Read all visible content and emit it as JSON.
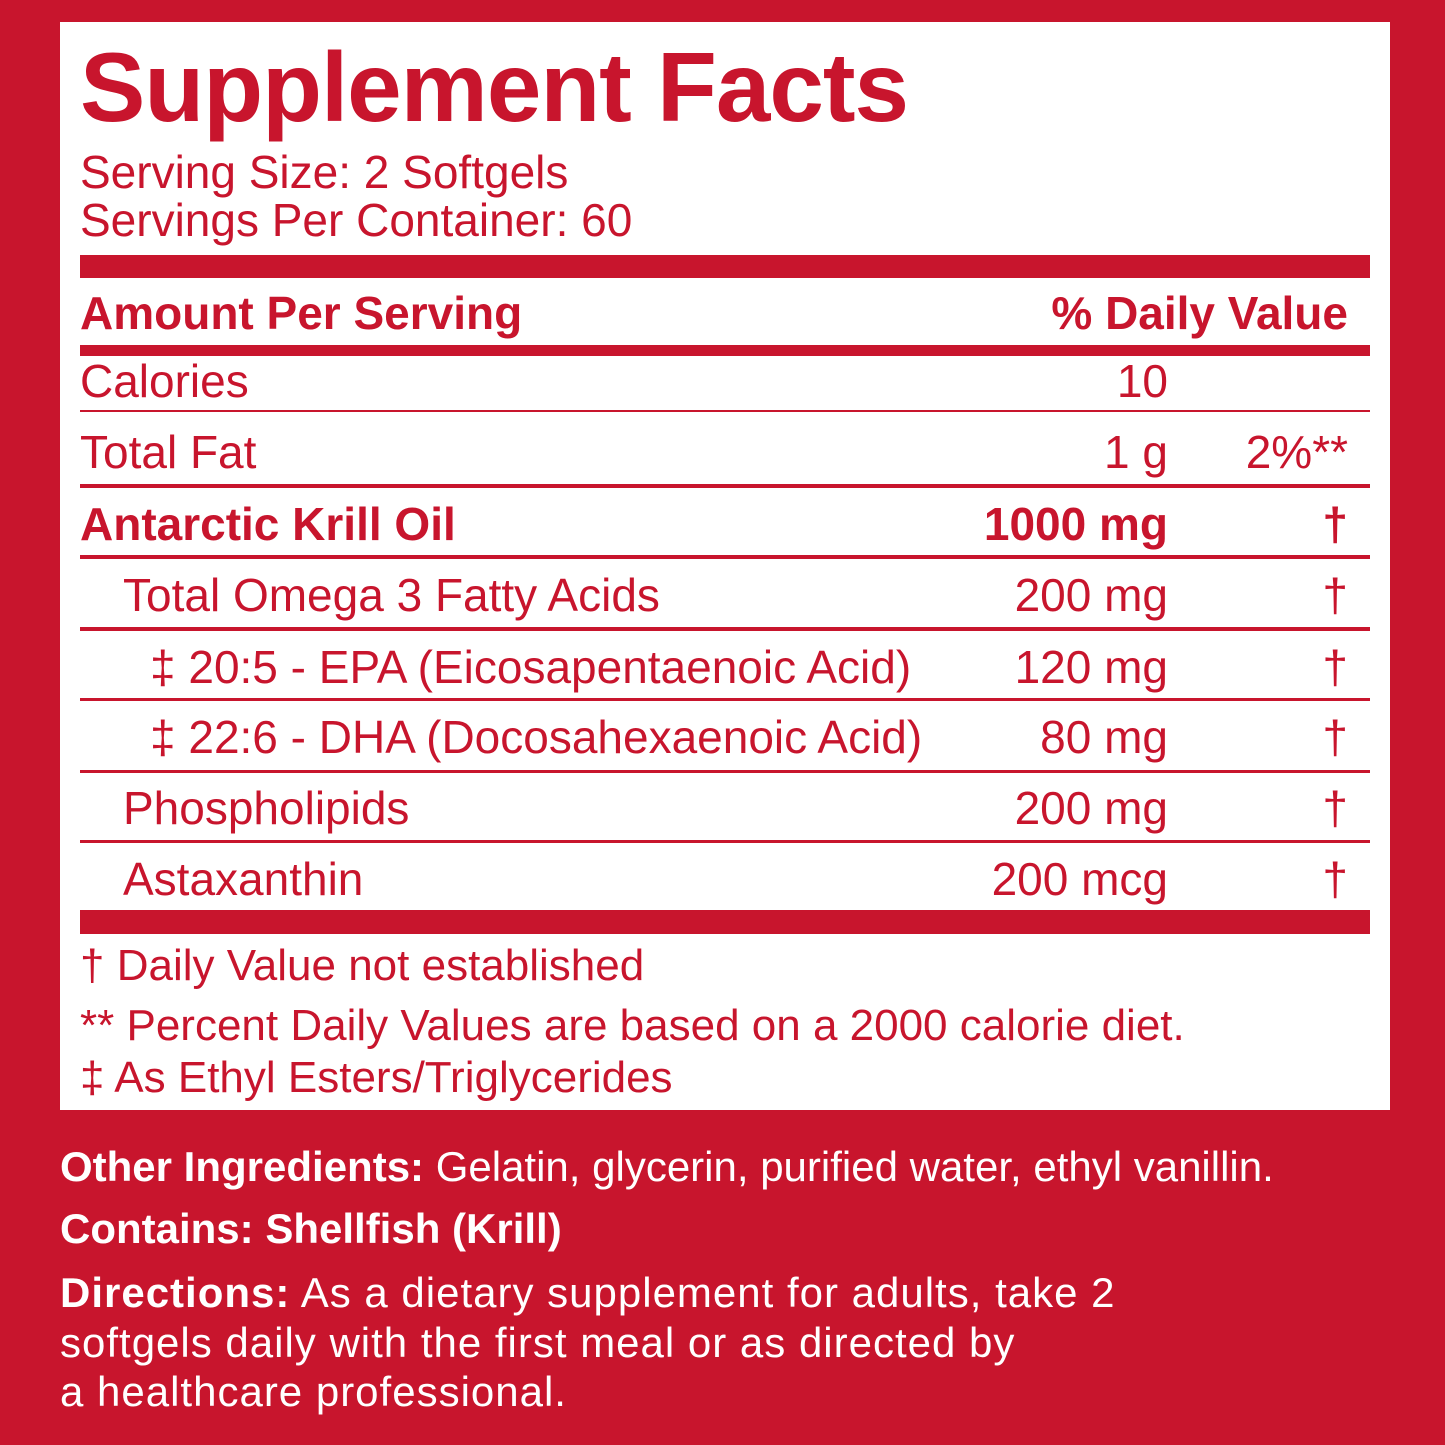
{
  "title": "Supplement Facts",
  "serving_size": "Serving Size: 2 Softgels",
  "servings_per_container": "Servings Per Container: 60",
  "header": {
    "amount": "Amount Per Serving",
    "dv": "% Daily Value"
  },
  "rows": [
    {
      "name": "Calories",
      "amount": "10",
      "dv": ""
    },
    {
      "name": "Total Fat",
      "amount": "1 g",
      "dv": "2%**"
    },
    {
      "name": "Antarctic Krill Oil",
      "amount": "1000 mg",
      "dv": "†"
    },
    {
      "name": "Total Omega 3 Fatty Acids",
      "amount": "200 mg",
      "dv": "†"
    },
    {
      "name": "‡ 20:5 - EPA (Eicosapentaenoic Acid)",
      "amount": "120 mg",
      "dv": "†"
    },
    {
      "name": "‡ 22:6 - DHA (Docosahexaenoic Acid)",
      "amount": "80 mg",
      "dv": "†"
    },
    {
      "name": "Phospholipids",
      "amount": "200 mg",
      "dv": "†"
    },
    {
      "name": "Astaxanthin",
      "amount": "200 mcg",
      "dv": "†"
    }
  ],
  "footnotes": [
    "† Daily Value not established",
    "** Percent Daily Values are based on a 2000 calorie diet.",
    "‡ As Ethyl Esters/Triglycerides"
  ],
  "other_ingredients": {
    "label": "Other Ingredients:",
    "text": " Gelatin, glycerin, purified water, ethyl vanillin."
  },
  "contains": "Contains: Shellfish (Krill)",
  "directions": {
    "label": "Directions:",
    "line1": " As a dietary supplement for adults, take 2",
    "line2": "softgels daily with the first meal or as directed by",
    "line3": "a healthcare professional."
  },
  "colors": {
    "brand": "#c8152d"
  }
}
